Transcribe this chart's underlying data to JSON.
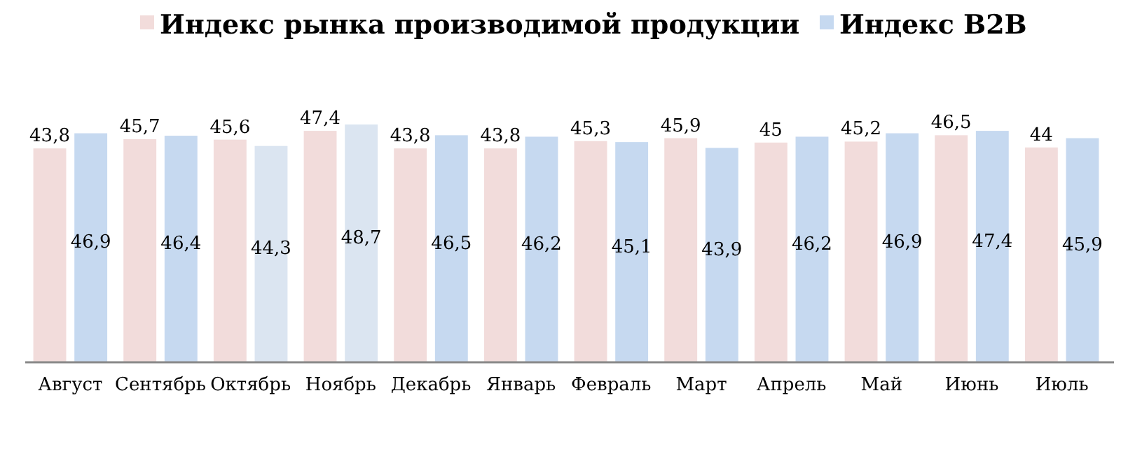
{
  "chart_data": {
    "type": "bar",
    "categories": [
      "Август",
      "Сентябрь",
      "Октябрь",
      "Ноябрь",
      "Декабрь",
      "Январь",
      "Февраль",
      "Март",
      "Апрель",
      "Май",
      "Июнь",
      "Июль"
    ],
    "series": [
      {
        "name": "Индекс рынка производимой продукции",
        "color": "#f2dcdb",
        "values": [
          43.8,
          45.7,
          45.6,
          47.4,
          43.8,
          43.8,
          45.3,
          45.9,
          45,
          45.2,
          46.5,
          44
        ],
        "value_labels": [
          "43,8",
          "45,7",
          "45,6",
          "47,4",
          "43,8",
          "43,8",
          "45,3",
          "45,9",
          "45",
          "45,2",
          "46,5",
          "44"
        ]
      },
      {
        "name": "Индекс B2B",
        "color": "#c6d9f0",
        "colors": [
          "#c6d9f0",
          "#c6d9f0",
          "#dbe5f1",
          "#dbe5f1",
          "#c6d9f0",
          "#c6d9f0",
          "#c6d9f0",
          "#c6d9f0",
          "#c6d9f0",
          "#c6d9f0",
          "#c6d9f0",
          "#c6d9f0"
        ],
        "values": [
          46.9,
          46.4,
          44.3,
          48.7,
          46.5,
          46.2,
          45.1,
          43.9,
          46.2,
          46.9,
          47.4,
          45.9
        ],
        "value_labels": [
          "46,9",
          "46,4",
          "44,3",
          "48,7",
          "46,5",
          "46,2",
          "45,1",
          "43,9",
          "46,2",
          "46,9",
          "47,4",
          "45,9"
        ]
      }
    ],
    "legend": "top"
  }
}
